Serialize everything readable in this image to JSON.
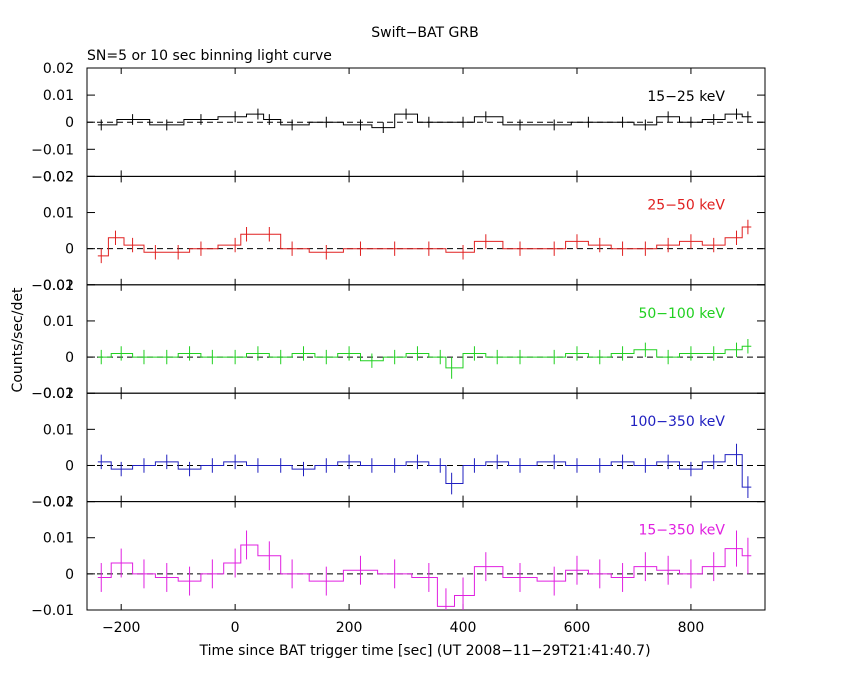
{
  "chart_data": {
    "type": "line",
    "title": "Swift−BAT GRB",
    "subtitle": "SN=5 or 10 sec binning light curve",
    "xlabel": "Time since BAT trigger time [sec] (UT 2008−11−29T21:41:40.7)",
    "ylabel": "Counts/sec/det",
    "xlim": [
      -260,
      930
    ],
    "x_ticks": [
      -200,
      0,
      200,
      400,
      600,
      800
    ],
    "x_tick_labels": [
      "−200",
      "0",
      "200",
      "400",
      "600",
      "800"
    ],
    "grid": false,
    "panels": [
      {
        "name": "15−25 keV",
        "color": "#000000",
        "ylim": [
          -0.02,
          0.02
        ],
        "y_ticks": [
          -0.02,
          -0.01,
          0,
          0.01,
          0.02
        ],
        "y_tick_labels": [
          "−0.02",
          "−0.01",
          "0",
          "0.01",
          "0.02"
        ],
        "x": [
          -235,
          -180,
          -120,
          -60,
          0,
          40,
          60,
          100,
          160,
          220,
          260,
          300,
          340,
          400,
          440,
          500,
          560,
          620,
          680,
          720,
          760,
          800,
          840,
          880,
          900
        ],
        "values": [
          -0.001,
          0.001,
          -0.001,
          0.001,
          0.002,
          0.003,
          0.001,
          -0.001,
          0.0,
          -0.001,
          -0.002,
          0.003,
          0.0,
          0.0,
          0.002,
          -0.001,
          -0.001,
          0.0,
          0.0,
          -0.001,
          0.002,
          0.0,
          0.001,
          0.003,
          0.002
        ],
        "errors": [
          0.002,
          0.002,
          0.002,
          0.002,
          0.002,
          0.002,
          0.002,
          0.002,
          0.002,
          0.002,
          0.002,
          0.002,
          0.002,
          0.002,
          0.002,
          0.002,
          0.002,
          0.002,
          0.002,
          0.002,
          0.002,
          0.002,
          0.002,
          0.002,
          0.002
        ]
      },
      {
        "name": "25−50 keV",
        "color": "#e02020",
        "ylim": [
          -0.01,
          0.02
        ],
        "y_ticks": [
          -0.01,
          0,
          0.01,
          0.02
        ],
        "y_tick_labels": [
          "−0.01",
          "0",
          "0.01",
          "0.02"
        ],
        "x": [
          -235,
          -210,
          -180,
          -140,
          -100,
          -60,
          0,
          20,
          60,
          100,
          160,
          220,
          280,
          340,
          400,
          440,
          500,
          560,
          600,
          640,
          680,
          720,
          760,
          800,
          840,
          880,
          900
        ],
        "values": [
          -0.002,
          0.003,
          0.001,
          -0.001,
          -0.001,
          0.0,
          0.001,
          0.004,
          0.004,
          0.0,
          -0.001,
          0.0,
          0.0,
          0.0,
          -0.001,
          0.002,
          0.0,
          0.0,
          0.002,
          0.001,
          0.0,
          0.0,
          0.001,
          0.002,
          0.001,
          0.003,
          0.006
        ],
        "errors": [
          0.002,
          0.002,
          0.002,
          0.002,
          0.002,
          0.002,
          0.002,
          0.002,
          0.002,
          0.002,
          0.002,
          0.002,
          0.002,
          0.002,
          0.002,
          0.002,
          0.002,
          0.002,
          0.002,
          0.002,
          0.002,
          0.002,
          0.002,
          0.002,
          0.002,
          0.002,
          0.002
        ]
      },
      {
        "name": "50−100 keV",
        "color": "#20d020",
        "ylim": [
          -0.01,
          0.02
        ],
        "y_ticks": [
          -0.01,
          0,
          0.01,
          0.02
        ],
        "y_tick_labels": [
          "−0.01",
          "0",
          "0.01",
          "0.02"
        ],
        "x": [
          -235,
          -200,
          -160,
          -120,
          -80,
          -40,
          0,
          40,
          80,
          120,
          160,
          200,
          240,
          280,
          320,
          360,
          380,
          420,
          460,
          500,
          560,
          600,
          640,
          680,
          720,
          760,
          800,
          840,
          880,
          900
        ],
        "values": [
          0.0,
          0.001,
          0.0,
          0.0,
          0.001,
          0.0,
          0.0,
          0.001,
          0.0,
          0.001,
          0.0,
          0.001,
          -0.001,
          0.0,
          0.001,
          0.0,
          -0.003,
          0.001,
          0.0,
          0.0,
          0.0,
          0.001,
          0.0,
          0.001,
          0.002,
          0.0,
          0.001,
          0.001,
          0.002,
          0.003
        ],
        "errors": [
          0.002,
          0.002,
          0.002,
          0.002,
          0.002,
          0.002,
          0.002,
          0.002,
          0.002,
          0.002,
          0.002,
          0.002,
          0.002,
          0.002,
          0.002,
          0.002,
          0.003,
          0.002,
          0.002,
          0.002,
          0.002,
          0.002,
          0.002,
          0.002,
          0.002,
          0.002,
          0.002,
          0.002,
          0.002,
          0.002
        ]
      },
      {
        "name": "100−350 keV",
        "color": "#2020c0",
        "ylim": [
          -0.01,
          0.02
        ],
        "y_ticks": [
          -0.01,
          0,
          0.01,
          0.02
        ],
        "y_tick_labels": [
          "−0.01",
          "0",
          "0.01",
          "0.02"
        ],
        "x": [
          -235,
          -200,
          -160,
          -120,
          -80,
          -40,
          0,
          40,
          80,
          120,
          160,
          200,
          240,
          280,
          320,
          360,
          380,
          420,
          460,
          500,
          560,
          600,
          640,
          680,
          720,
          760,
          800,
          840,
          880,
          900
        ],
        "values": [
          0.001,
          -0.001,
          0.0,
          0.001,
          -0.001,
          0.0,
          0.001,
          0.0,
          0.0,
          -0.001,
          0.0,
          0.001,
          0.0,
          0.0,
          0.001,
          0.0,
          -0.005,
          0.0,
          0.001,
          0.0,
          0.001,
          0.0,
          0.0,
          0.001,
          0.0,
          0.001,
          -0.001,
          0.001,
          0.003,
          -0.006
        ],
        "errors": [
          0.002,
          0.002,
          0.002,
          0.002,
          0.002,
          0.002,
          0.002,
          0.002,
          0.002,
          0.002,
          0.002,
          0.002,
          0.002,
          0.002,
          0.002,
          0.002,
          0.003,
          0.002,
          0.002,
          0.002,
          0.002,
          0.002,
          0.002,
          0.002,
          0.002,
          0.002,
          0.002,
          0.002,
          0.003,
          0.003
        ]
      },
      {
        "name": "15−350 keV",
        "color": "#e020e0",
        "ylim": [
          -0.01,
          0.02
        ],
        "y_ticks": [
          -0.01,
          0,
          0.01,
          0.02
        ],
        "y_tick_labels": [
          "−0.01",
          "0",
          "0.01",
          "0.02"
        ],
        "x": [
          -235,
          -200,
          -160,
          -120,
          -80,
          -40,
          0,
          20,
          60,
          100,
          160,
          220,
          280,
          340,
          370,
          400,
          440,
          500,
          560,
          600,
          640,
          680,
          720,
          760,
          800,
          840,
          880,
          900
        ],
        "values": [
          -0.001,
          0.003,
          0.0,
          -0.001,
          -0.002,
          0.0,
          0.003,
          0.008,
          0.005,
          0.0,
          -0.002,
          0.001,
          0.0,
          -0.001,
          -0.009,
          -0.006,
          0.002,
          -0.001,
          -0.002,
          0.001,
          0.0,
          -0.001,
          0.002,
          0.001,
          0.0,
          0.002,
          0.007,
          0.005
        ],
        "errors": [
          0.004,
          0.004,
          0.004,
          0.004,
          0.004,
          0.004,
          0.004,
          0.004,
          0.004,
          0.004,
          0.004,
          0.004,
          0.004,
          0.004,
          0.005,
          0.005,
          0.004,
          0.004,
          0.004,
          0.004,
          0.004,
          0.004,
          0.004,
          0.004,
          0.004,
          0.004,
          0.005,
          0.005
        ]
      }
    ]
  }
}
